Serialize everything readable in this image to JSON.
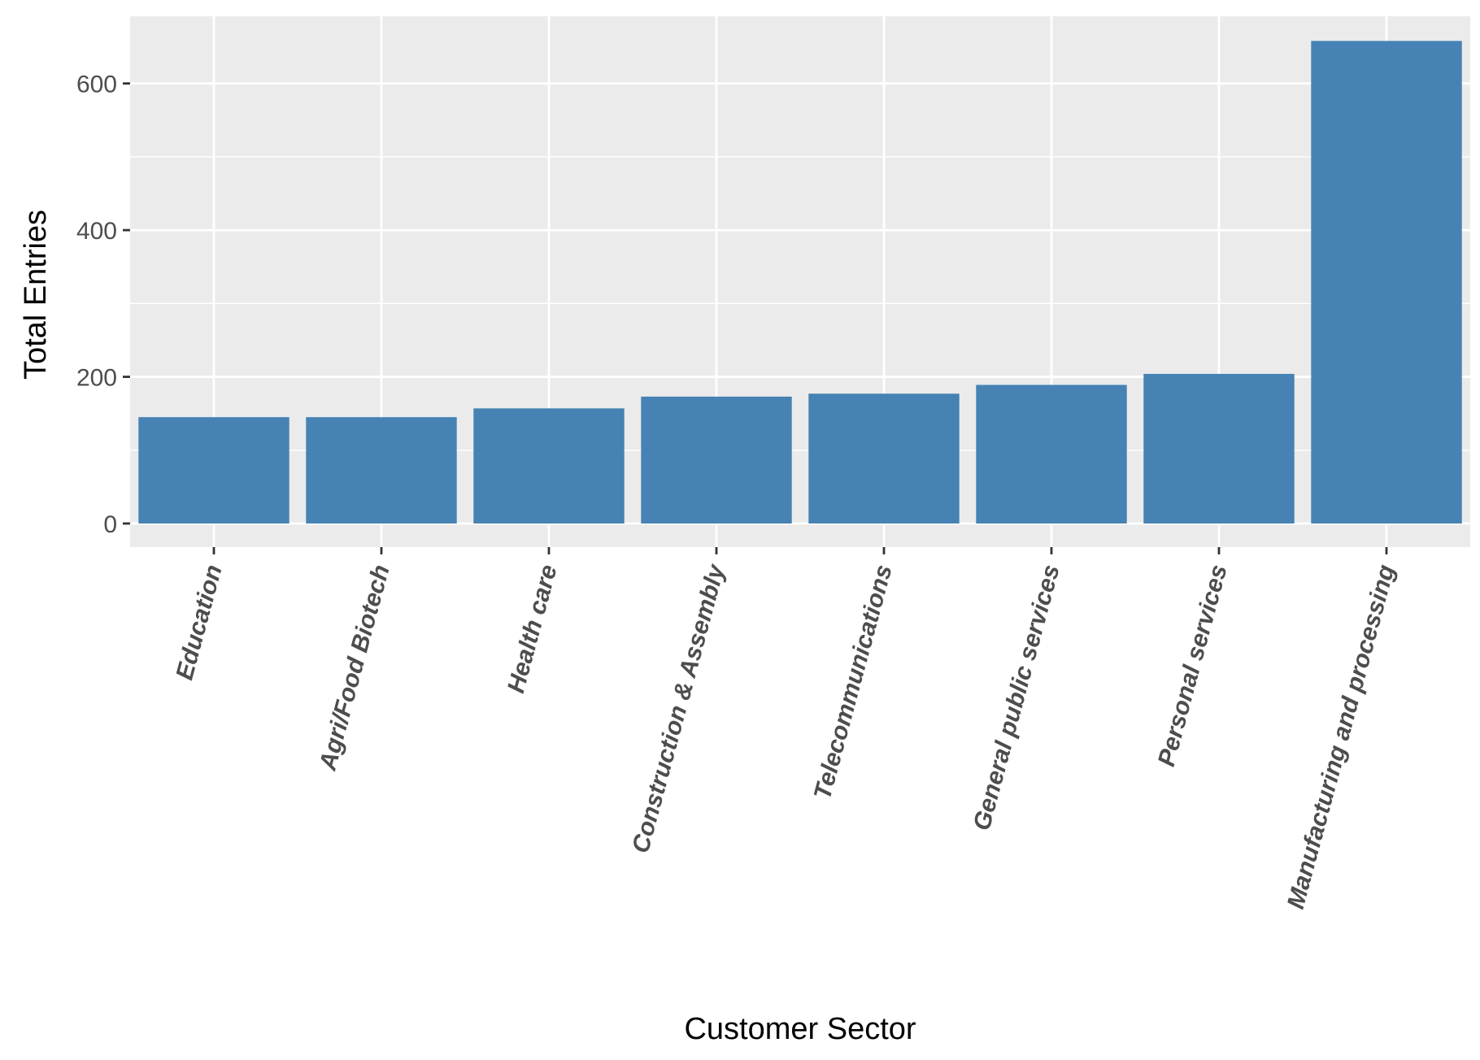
{
  "chart_data": {
    "type": "bar",
    "title": "",
    "xlabel": "Customer Sector",
    "ylabel": "Total Entries",
    "categories": [
      "Education",
      "Agri/Food Biotech",
      "Health care",
      "Construction & Assembly",
      "Telecommunications",
      "General public services",
      "Personal services",
      "Manufacturing and processing"
    ],
    "values": [
      145,
      145,
      157,
      173,
      177,
      189,
      204,
      658
    ],
    "ylim": [
      0,
      690
    ],
    "yticks": [
      0,
      200,
      400,
      600
    ],
    "grid": true,
    "legend": "none",
    "colors": {
      "bar": "#4682b4",
      "panel": "#ebebeb",
      "grid": "#ffffff"
    }
  }
}
